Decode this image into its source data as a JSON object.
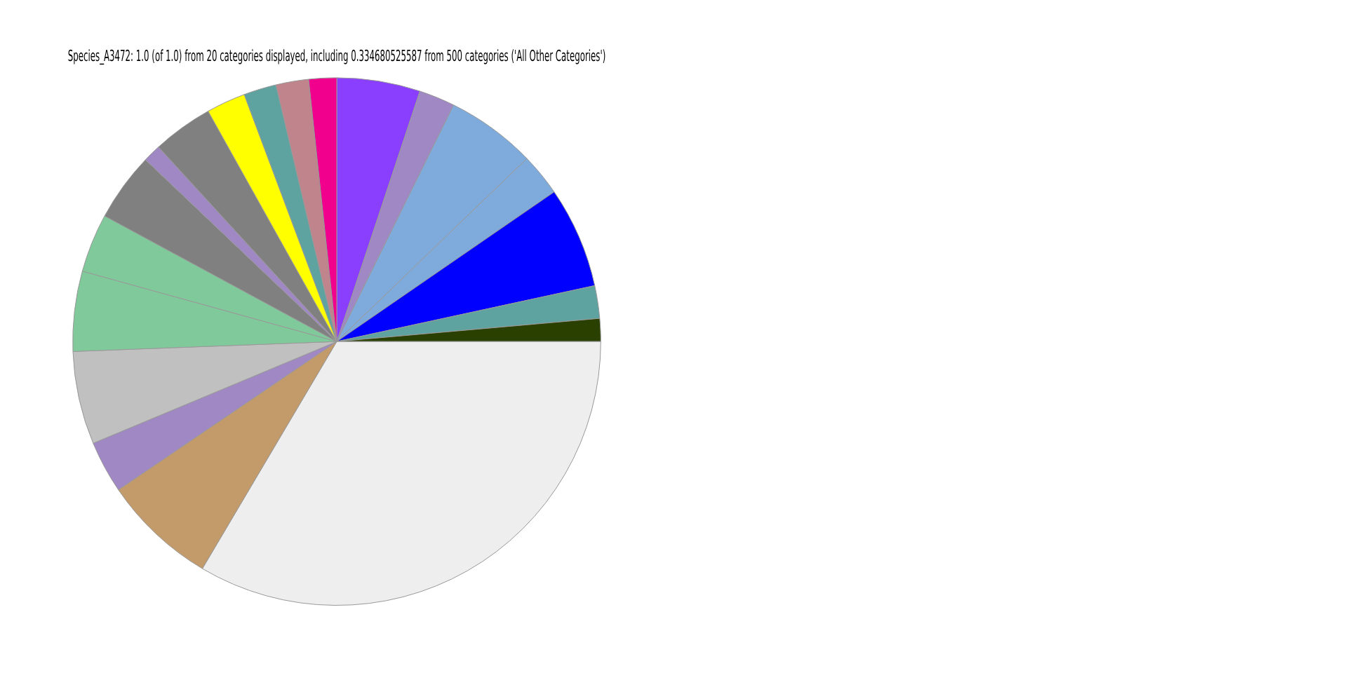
{
  "chart_data": {
    "type": "pie",
    "title": "Species_A3472: 1.0 (of 1.0) from 20 categories displayed, including 0.334680525587 from 500 categories ('All Other Categories')",
    "categories": [
      null,
      null,
      null,
      null,
      null,
      null,
      null,
      null,
      null,
      null,
      null,
      null,
      null,
      null,
      null,
      null,
      null,
      null,
      null,
      null
    ],
    "values": [
      5.1,
      2.2,
      5.5,
      2.6,
      6.2,
      2.0,
      1.4,
      33.5,
      7.0,
      3.2,
      5.7,
      4.9,
      3.6,
      4.2,
      1.1,
      3.7,
      2.4,
      2.0,
      2.0,
      1.7
    ],
    "colors": [
      "#8a3ffe",
      "#a088c4",
      "#7faadc",
      "#7faadc",
      "#0000ff",
      "#5fa3a0",
      "#2a4000",
      "#eeeeee",
      "#c39b6b",
      "#a088c4",
      "#c0c0c0",
      "#80c99a",
      "#80c99a",
      "#808080",
      "#a088c4",
      "#808080",
      "#ffff00",
      "#5fa3a0",
      "#c0848c",
      "#f0008c"
    ]
  }
}
